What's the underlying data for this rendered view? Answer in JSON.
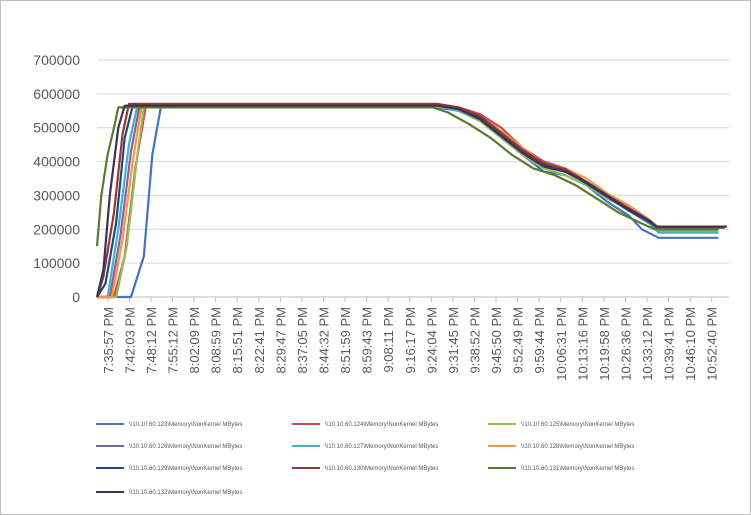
{
  "chart_data": {
    "type": "line",
    "title": "",
    "xlabel": "",
    "ylabel": "",
    "ylim": [
      0,
      700000
    ],
    "y_ticks": [
      0,
      100000,
      200000,
      300000,
      400000,
      500000,
      600000,
      700000
    ],
    "y_tick_labels": [
      "0",
      "100000",
      "200000",
      "300000",
      "400000",
      "500000",
      "600000",
      "700000"
    ],
    "x_tick_labels": [
      "7:35:57 PM",
      "7:42:03 PM",
      "7:48:12 PM",
      "7:55:12 PM",
      "8:02:09 PM",
      "8:08:59 PM",
      "8:15:51 PM",
      "8:22:41 PM",
      "8:29:47 PM",
      "8:37:05 PM",
      "8:44:32 PM",
      "8:51:59 PM",
      "8:59:43 PM",
      "9:08:11 PM",
      "9:16:17 PM",
      "9:24:04 PM",
      "9:31:45 PM",
      "9:38:52 PM",
      "9:45:50 PM",
      "9:52:49 PM",
      "9:59:44 PM",
      "10:06:31 PM",
      "10:13:16 PM",
      "10:19:58 PM",
      "10:26:36 PM",
      "10:33:12 PM",
      "10:39:41 PM",
      "10:46:10 PM",
      "10:52:40 PM"
    ],
    "x_range": [
      0,
      29.7
    ],
    "grid": "horizontal",
    "legend_position": "bottom",
    "series": [
      {
        "name": "\\\\10.10.60.123\\Memory\\NonKernel MBytes",
        "color": "#4472c4",
        "x": [
          0,
          1.2,
          1.6,
          2.2,
          2.6,
          3.0,
          16,
          17,
          18,
          19,
          20,
          21,
          22,
          23,
          24,
          25,
          25.6,
          26.4,
          29.2
        ],
        "y": [
          0,
          0,
          0,
          120000,
          420000,
          560000,
          560000,
          550000,
          520000,
          470000,
          420000,
          370000,
          360000,
          330000,
          280000,
          240000,
          200000,
          175000,
          175000
        ]
      },
      {
        "name": "\\\\10.10.60.124\\Memory\\NonKernel MBytes",
        "color": "#c0504d",
        "x": [
          0,
          0.8,
          1.3,
          1.8,
          2.3,
          16,
          17,
          18,
          19,
          20,
          21,
          22,
          23,
          24,
          25,
          25.8,
          26.4,
          29.2
        ],
        "y": [
          0,
          0,
          120000,
          380000,
          565000,
          565000,
          560000,
          540000,
          500000,
          440000,
          400000,
          380000,
          340000,
          300000,
          260000,
          230000,
          200000,
          200000
        ]
      },
      {
        "name": "\\\\10.10.60.125\\Memory\\NonKernel MBytes",
        "color": "#9bbb59",
        "x": [
          0,
          0.9,
          1.4,
          1.9,
          2.2,
          16.4,
          17,
          18,
          19,
          20,
          21,
          22,
          23,
          24,
          25,
          26,
          26.4,
          29.2
        ],
        "y": [
          0,
          0,
          150000,
          420000,
          560000,
          560000,
          550000,
          520000,
          470000,
          420000,
          380000,
          360000,
          330000,
          290000,
          260000,
          220000,
          195000,
          195000
        ]
      },
      {
        "name": "\\\\10.10.60.126\\Memory\\NonKernel MBytes",
        "color": "#8064a2",
        "x": [
          0,
          0.6,
          1.1,
          1.6,
          2.0,
          16,
          17,
          18,
          19,
          20,
          21,
          22,
          23,
          24,
          25,
          26,
          26.4,
          29.2
        ],
        "y": [
          0,
          0,
          180000,
          430000,
          565000,
          565000,
          555000,
          530000,
          480000,
          430000,
          390000,
          375000,
          340000,
          300000,
          260000,
          225000,
          205000,
          205000
        ]
      },
      {
        "name": "\\\\10.10.60.127\\Memory\\NonKernel MBytes",
        "color": "#4bacc6",
        "x": [
          0,
          0.5,
          1.0,
          1.5,
          1.9,
          16,
          17,
          18,
          19,
          20,
          21,
          22,
          23,
          24,
          25,
          26,
          26.4,
          29.2
        ],
        "y": [
          0,
          0,
          200000,
          450000,
          565000,
          565000,
          550000,
          525000,
          475000,
          430000,
          385000,
          370000,
          335000,
          295000,
          255000,
          215000,
          190000,
          190000
        ]
      },
      {
        "name": "\\\\10.10.60.128\\Memory\\NonKernel MBytes",
        "color": "#f79646",
        "x": [
          0,
          0.7,
          1.2,
          1.7,
          2.1,
          16.6,
          17,
          18,
          19,
          20,
          21,
          22,
          23,
          24,
          25,
          25.8,
          26.5,
          29.2
        ],
        "y": [
          0,
          0,
          170000,
          410000,
          565000,
          565000,
          555000,
          535000,
          490000,
          440000,
          395000,
          380000,
          350000,
          305000,
          270000,
          235000,
          200000,
          200000
        ]
      },
      {
        "name": "\\\\10.10.60.129\\Memory\\NonKernel MBytes",
        "color": "#1f497d",
        "x": [
          0,
          0.4,
          0.9,
          1.3,
          1.7,
          16,
          17,
          18,
          19,
          20,
          21,
          22,
          23,
          24,
          25,
          26,
          26.4,
          29.2
        ],
        "y": [
          0,
          40000,
          220000,
          470000,
          570000,
          570000,
          555000,
          530000,
          480000,
          430000,
          390000,
          375000,
          335000,
          295000,
          255000,
          220000,
          200000,
          200000
        ]
      },
      {
        "name": "\\\\10.10.60.130\\Memory\\NonKernel MBytes",
        "color": "#953735",
        "x": [
          0,
          0.3,
          0.8,
          1.2,
          1.5,
          16,
          17,
          18,
          19,
          20,
          21,
          22,
          23,
          24,
          25,
          26,
          26.3,
          29.5
        ],
        "y": [
          0,
          60000,
          250000,
          480000,
          570000,
          570000,
          560000,
          535000,
          485000,
          435000,
          395000,
          378000,
          340000,
          300000,
          262000,
          225000,
          205000,
          205000
        ]
      },
      {
        "name": "\\\\10.10.60.131\\Memory\\NonKernel MBytes",
        "color": "#5a7a31",
        "x": [
          0,
          0.2,
          0.5,
          0.8,
          1.0,
          15.8,
          16.5,
          17.5,
          18.5,
          19.5,
          20.5,
          21.5,
          22.5,
          23.5,
          24.5,
          25.5,
          26.2,
          29.2
        ],
        "y": [
          150000,
          300000,
          420000,
          500000,
          560000,
          560000,
          545000,
          510000,
          470000,
          420000,
          380000,
          360000,
          330000,
          290000,
          250000,
          220000,
          200000,
          200000
        ]
      },
      {
        "name": "\\\\10.10.60.132\\Memory\\NonKernel MBytes",
        "color": "#3f3151",
        "x": [
          0,
          0.3,
          0.6,
          1.0,
          1.3,
          16,
          17,
          18,
          19,
          20,
          21,
          22,
          23,
          24,
          25,
          26,
          26.3,
          29.6
        ],
        "y": [
          0,
          80000,
          300000,
          500000,
          565000,
          565000,
          555000,
          525000,
          475000,
          425000,
          385000,
          370000,
          340000,
          298000,
          258000,
          222000,
          208000,
          208000
        ]
      }
    ]
  }
}
